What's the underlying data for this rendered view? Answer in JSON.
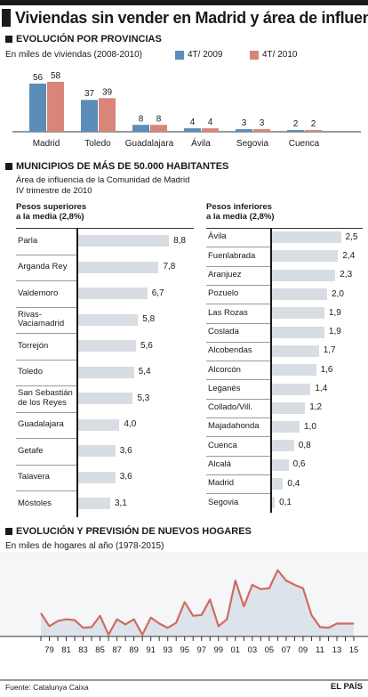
{
  "title": "Viviendas sin vender en Madrid y área de influencia",
  "sections": {
    "provincias": {
      "title": "EVOLUCIÓN POR PROVINCIAS",
      "subtitle": "En miles de viviendas (2008-2010)",
      "legend": [
        "4T/ 2009",
        "4T/ 2010"
      ]
    },
    "municipios": {
      "title": "MUNICIPIOS DE MÁS DE 50.000 HABITANTES",
      "subtitle1": "Área de influencia de la Comunidad de Madrid",
      "subtitle2": "IV trimestre de 2010",
      "left_head1": "Pesos superiores",
      "left_head2": "a la media (2,8%)",
      "right_head1": "Pesos inferiores",
      "right_head2": "a la media (2,8%)"
    },
    "hogares": {
      "title": "EVOLUCIÓN Y PREVISIÓN DE NUEVOS HOGARES",
      "subtitle": "En miles de hogares al año (1978-2015)"
    }
  },
  "footer": {
    "source": "Fuente: Catalunya Caixa",
    "brand": "EL PAÍS"
  },
  "colors": {
    "series2009": "#5b8db8",
    "series2010": "#d9857a",
    "bars": "#d8dde3",
    "area": "#dde3ea",
    "line": "#d06b60"
  },
  "chart_data": [
    {
      "type": "bar",
      "categories": [
        "Madrid",
        "Toledo",
        "Guadalajara",
        "Ávila",
        "Segovia",
        "Cuenca"
      ],
      "series": [
        {
          "name": "4T/ 2009",
          "values": [
            56,
            37,
            8,
            4,
            3,
            2
          ]
        },
        {
          "name": "4T/ 2010",
          "values": [
            58,
            39,
            8,
            4,
            3,
            2
          ]
        }
      ],
      "ylim": [
        0,
        60
      ]
    },
    {
      "type": "bar",
      "orientation": "horizontal",
      "categories": [
        "Parla",
        "Arganda Rey",
        "Valdemoro",
        "Rivas-Vaciamadrid",
        "Torrejón",
        "Toledo",
        "San Sebastián de los Reyes",
        "Guadalajara",
        "Getafe",
        "Talavera",
        "Móstoles"
      ],
      "values": [
        8.8,
        7.8,
        6.7,
        5.8,
        5.6,
        5.4,
        5.3,
        4.0,
        3.6,
        3.6,
        3.1
      ],
      "labels": [
        "8,8",
        "7,8",
        "6,7",
        "5,8",
        "5,6",
        "5,4",
        "5,3",
        "4,0",
        "3,6",
        "3,6",
        "3,1"
      ]
    },
    {
      "type": "bar",
      "orientation": "horizontal",
      "categories": [
        "Ávila",
        "Fuenlabrada",
        "Aranjuez",
        "Pozuelo",
        "Las Rozas",
        "Coslada",
        "Alcobendas",
        "Alcorcón",
        "Leganés",
        "Collado/Vill.",
        "Majadahonda",
        "Cuenca",
        "Alcalá",
        "Madrid",
        "Segovia"
      ],
      "values": [
        2.5,
        2.4,
        2.3,
        2.0,
        1.9,
        1.9,
        1.7,
        1.6,
        1.4,
        1.2,
        1.0,
        0.8,
        0.6,
        0.4,
        0.1
      ],
      "labels": [
        "2,5",
        "2,4",
        "2,3",
        "2,0",
        "1,9",
        "1,9",
        "1,7",
        "1,6",
        "1,4",
        "1,2",
        "1,0",
        "0,8",
        "0,6",
        "0,4",
        "0,1"
      ]
    },
    {
      "type": "area",
      "x": [
        1978,
        1979,
        1980,
        1981,
        1982,
        1983,
        1984,
        1985,
        1986,
        1987,
        1988,
        1989,
        1990,
        1991,
        1992,
        1993,
        1994,
        1995,
        1996,
        1997,
        1998,
        1999,
        2000,
        2001,
        2002,
        2003,
        2004,
        2005,
        2006,
        2007,
        2008,
        2009,
        2010,
        2011,
        2012,
        2013,
        2014,
        2015
      ],
      "y": [
        27,
        12,
        18,
        20,
        19,
        10,
        11,
        24,
        2,
        20,
        14,
        20,
        2,
        22,
        15,
        10,
        16,
        40,
        24,
        25,
        43,
        12,
        20,
        65,
        35,
        60,
        55,
        56,
        77,
        65,
        60,
        56,
        25,
        11,
        10,
        15,
        15,
        15
      ],
      "x_tick_labels": [
        "79",
        "81",
        "83",
        "85",
        "87",
        "89",
        "91",
        "93",
        "95",
        "97",
        "99",
        "01",
        "03",
        "05",
        "07",
        "09",
        "11",
        "13",
        "15"
      ],
      "ylim": [
        0,
        90
      ]
    }
  ]
}
